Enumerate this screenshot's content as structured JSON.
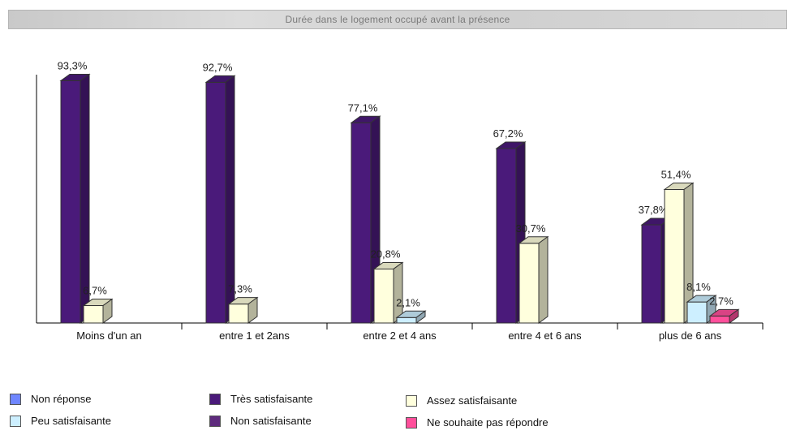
{
  "title": "Durée dans le logement occupé avant la présence",
  "chart_data": {
    "type": "bar",
    "categories": [
      "Moins d'un an",
      "entre 1 et 2ans",
      "entre 2 et 4 ans",
      "entre 4 et 6 ans",
      "plus de 6 ans"
    ],
    "series": [
      {
        "name": "Très satisfaisante",
        "color": "#4a1a7a",
        "values": [
          93.3,
          92.7,
          77.1,
          67.2,
          37.8
        ],
        "labels": [
          "93,3%",
          "92,7%",
          "77,1%",
          "67,2%",
          "37,8%"
        ]
      },
      {
        "name": "Assez satisfaisante",
        "color": "#ffffdd",
        "values": [
          6.7,
          7.3,
          20.8,
          30.7,
          51.4
        ],
        "labels": [
          "6,7%",
          "7,3%",
          "20,8%",
          "30,7%",
          "51,4%"
        ]
      },
      {
        "name": "Peu satisfaisante",
        "color": "#cdefff",
        "values": [
          0,
          0,
          2.1,
          0,
          8.1
        ],
        "labels": [
          "",
          "",
          "2,1%",
          "",
          "8,1%"
        ]
      },
      {
        "name": "Ne souhaite pas répondre",
        "color": "#ff4f9b",
        "values": [
          0,
          0,
          0,
          0,
          2.7
        ],
        "labels": [
          "",
          "",
          "",
          "",
          "2,7%"
        ]
      }
    ],
    "legend": [
      {
        "name": "Non réponse",
        "color": "#6f86ff",
        "icon": "blue-square-icon"
      },
      {
        "name": "Très satisfaisante",
        "color": "#4a1a7a",
        "icon": "purple-square-icon"
      },
      {
        "name": "Assez satisfaisante",
        "color": "#ffffdd",
        "icon": "cream-square-icon"
      },
      {
        "name": "Peu satisfaisante",
        "color": "#cdefff",
        "icon": "light-blue-square-icon"
      },
      {
        "name": "Non satisfaisante",
        "color": "#5e2b7d",
        "icon": "dark-purple-square-icon"
      },
      {
        "name": "Ne souhaite pas répondre",
        "color": "#ff4f9b",
        "icon": "pink-square-icon"
      }
    ],
    "ylim": [
      0,
      100
    ],
    "grid": false,
    "legend_placement": "bottom"
  }
}
